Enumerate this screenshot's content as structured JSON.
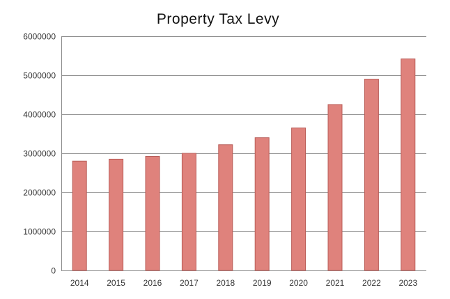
{
  "chart_data": {
    "type": "bar",
    "title": "Property Tax Levy",
    "xlabel": "",
    "ylabel": "",
    "categories": [
      "2014",
      "2015",
      "2016",
      "2017",
      "2018",
      "2019",
      "2020",
      "2021",
      "2022",
      "2023"
    ],
    "values": [
      2800000,
      2850000,
      2920000,
      3000000,
      3220000,
      3400000,
      3650000,
      4250000,
      4900000,
      5420000
    ],
    "ylim": [
      0,
      6000000
    ],
    "yticks": [
      "0",
      "1000000",
      "2000000",
      "3000000",
      "4000000",
      "5000000",
      "6000000"
    ],
    "grid": true,
    "legend": "none",
    "colors": {
      "bar": "#df827c",
      "bar_border": "#b85c57",
      "grid": "#8c8c8c"
    }
  }
}
